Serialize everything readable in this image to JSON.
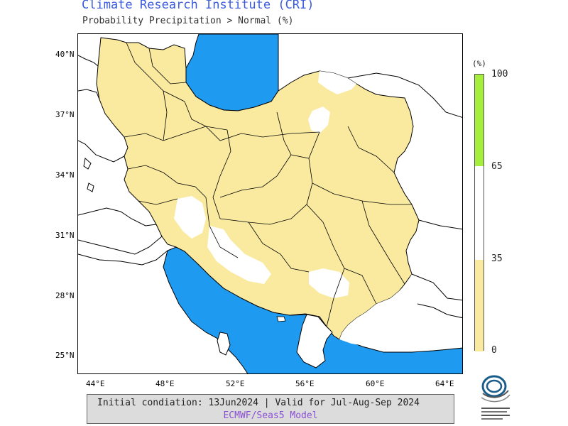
{
  "header": {
    "title": "Climate Research Institute (CRI)",
    "subtitle": "Probability Precipitation > Normal (%)"
  },
  "map": {
    "lat_labels": [
      "40°N",
      "37°N",
      "34°N",
      "31°N",
      "28°N",
      "25°N"
    ],
    "lon_labels": [
      "44°E",
      "48°E",
      "52°E",
      "56°E",
      "60°E",
      "64°E"
    ],
    "colors": {
      "sea": "#1e9bf0",
      "below_normal_fill": "#faeaa0",
      "near_normal_fill": "#ffffff",
      "above_normal_fill": "#a6ee3c",
      "border": "#000000"
    }
  },
  "colorbar": {
    "unit": "(%)",
    "ticks": [
      "100",
      "65",
      "35",
      "0"
    ],
    "bins": [
      {
        "from": 0,
        "to": 35,
        "color": "#faeaa0"
      },
      {
        "from": 35,
        "to": 65,
        "color": "#ffffff"
      },
      {
        "from": 65,
        "to": 100,
        "color": "#a6ee3c"
      }
    ]
  },
  "footer": {
    "line1": "Initial condiation: 13Jun2024 | Valid for Jul-Aug-Sep 2024",
    "line2": "ECMWF/Seas5 Model"
  },
  "logo": {
    "icon": "cri-logo-icon"
  }
}
